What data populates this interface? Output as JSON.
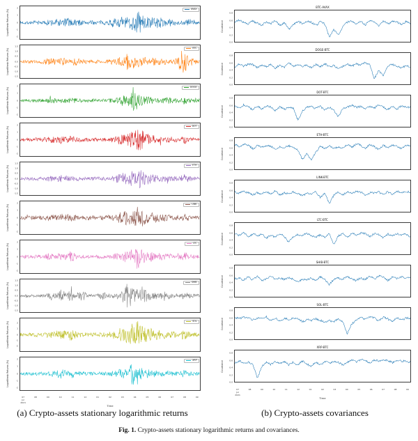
{
  "captions": {
    "left": "(a) Crypto-assets stationary logarithmic returns",
    "right": "(b) Crypto-assets covariances",
    "fig_label": "Fig. 1.",
    "fig_text": "Crypto-assets stationary logarithmic returns and covariances."
  },
  "chart_data": {
    "type": "line",
    "noise_seed": 7,
    "panels": [
      {
        "id": "returns",
        "kind": "returns",
        "ylabel": "Logarithmic Returns (%)",
        "xlabel": "Time",
        "x_ticks": [
          "07\nJul\n2021",
          "08",
          "09",
          "10",
          "11",
          "12",
          "01",
          "02",
          "03",
          "04",
          "05",
          "06",
          "07",
          "08",
          "09"
        ],
        "series": [
          {
            "label": "AVAX",
            "color": "#1f77b4",
            "ylim": [
              -2.4,
              2.4
            ],
            "yticks": [
              "2",
              "1",
              "0",
              "-1",
              "-2"
            ],
            "envelope": [
              0.1,
              0.12,
              0.11,
              0.13,
              0.12,
              0.14,
              0.25,
              0.3,
              0.22,
              0.35,
              0.2,
              0.28,
              0.18,
              0.15,
              0.14,
              0.13,
              0.15,
              0.14,
              0.3,
              0.25,
              0.45,
              0.35,
              0.6,
              0.9,
              0.5,
              0.4,
              0.35,
              0.35,
              0.3,
              0.25,
              0.2,
              0.18,
              0.16,
              0.3,
              0.2,
              0.14
            ]
          },
          {
            "label": "BTC",
            "color": "#ff7f0e",
            "ylim": [
              -1.7,
              1.7
            ],
            "yticks": [
              "1.5",
              "1.0",
              "0.5",
              "0.0",
              "-0.5",
              "-1.0",
              "-1.5"
            ],
            "envelope": [
              0.1,
              0.1,
              0.12,
              0.11,
              0.13,
              0.2,
              0.25,
              0.18,
              0.3,
              0.22,
              0.15,
              0.28,
              0.14,
              0.13,
              0.12,
              0.12,
              0.13,
              0.14,
              0.18,
              0.25,
              0.4,
              0.55,
              0.45,
              0.35,
              0.3,
              0.28,
              0.25,
              0.22,
              0.2,
              0.18,
              0.16,
              0.5,
              0.9,
              0.3,
              0.2,
              0.15
            ]
          },
          {
            "label": "DOGE",
            "color": "#2ca02c",
            "ylim": [
              -2.4,
              2.4
            ],
            "yticks": [
              "2",
              "1",
              "0",
              "-1",
              "-2"
            ],
            "envelope": [
              0.1,
              0.11,
              0.1,
              0.12,
              0.11,
              0.13,
              0.2,
              0.16,
              0.25,
              0.18,
              0.22,
              0.15,
              0.13,
              0.12,
              0.12,
              0.11,
              0.12,
              0.13,
              0.16,
              0.2,
              0.35,
              0.3,
              0.9,
              0.45,
              0.3,
              0.25,
              0.22,
              0.2,
              0.3,
              0.22,
              0.16,
              0.14,
              0.25,
              0.15,
              0.12,
              0.11
            ]
          },
          {
            "label": "DOT",
            "color": "#d62728",
            "ylim": [
              -2.4,
              2.4
            ],
            "yticks": [
              "2",
              "1",
              "0",
              "-1",
              "-2"
            ],
            "envelope": [
              0.12,
              0.13,
              0.12,
              0.14,
              0.13,
              0.15,
              0.22,
              0.18,
              0.28,
              0.2,
              0.25,
              0.16,
              0.14,
              0.13,
              0.13,
              0.12,
              0.14,
              0.15,
              0.2,
              0.3,
              0.45,
              0.4,
              0.6,
              0.9,
              0.55,
              0.4,
              0.3,
              0.25,
              0.22,
              0.2,
              0.18,
              0.16,
              0.28,
              0.16,
              0.13,
              0.12
            ]
          },
          {
            "label": "ETH",
            "color": "#9467bd",
            "ylim": [
              -1.7,
              1.7
            ],
            "yticks": [
              "1.5",
              "1.0",
              "0.5",
              "0.0",
              "-0.5",
              "-1.0",
              "-1.5"
            ],
            "envelope": [
              0.1,
              0.11,
              0.11,
              0.12,
              0.12,
              0.14,
              0.2,
              0.16,
              0.25,
              0.18,
              0.2,
              0.15,
              0.13,
              0.12,
              0.12,
              0.12,
              0.13,
              0.14,
              0.18,
              0.28,
              0.4,
              0.35,
              0.55,
              0.85,
              0.45,
              0.35,
              0.3,
              0.25,
              0.22,
              0.2,
              0.17,
              0.15,
              0.3,
              0.18,
              0.14,
              0.12
            ]
          },
          {
            "label": "LINK",
            "color": "#8c564b",
            "ylim": [
              -2.4,
              2.4
            ],
            "yticks": [
              "2",
              "1",
              "0",
              "-1",
              "-2"
            ],
            "envelope": [
              0.12,
              0.13,
              0.13,
              0.14,
              0.14,
              0.16,
              0.24,
              0.2,
              0.3,
              0.22,
              0.26,
              0.18,
              0.15,
              0.14,
              0.14,
              0.13,
              0.15,
              0.16,
              0.22,
              0.32,
              0.5,
              0.45,
              0.7,
              0.9,
              0.55,
              0.45,
              0.35,
              0.28,
              0.25,
              0.22,
              0.2,
              0.18,
              0.3,
              0.18,
              0.15,
              0.13
            ]
          },
          {
            "label": "LTC",
            "color": "#e377c2",
            "ylim": [
              -2.4,
              2.4
            ],
            "yticks": [
              "2",
              "1",
              "0",
              "-1",
              "-2"
            ],
            "envelope": [
              0.11,
              0.12,
              0.11,
              0.13,
              0.12,
              0.14,
              0.35,
              0.18,
              0.28,
              0.2,
              0.4,
              0.16,
              0.14,
              0.13,
              0.12,
              0.12,
              0.13,
              0.14,
              0.18,
              0.26,
              0.4,
              0.35,
              0.55,
              0.9,
              0.45,
              0.35,
              0.3,
              0.25,
              0.22,
              0.2,
              0.17,
              0.15,
              0.28,
              0.16,
              0.13,
              0.12
            ]
          },
          {
            "label": "SHIB",
            "color": "#7f7f7f",
            "ylim": [
              -1.7,
              1.7
            ],
            "yticks": [
              "1.5",
              "1.0",
              "0.5",
              "0.0",
              "-0.5",
              "-1.0",
              "-1.5"
            ],
            "envelope": [
              0.1,
              0.11,
              0.1,
              0.12,
              0.11,
              0.13,
              0.3,
              0.16,
              0.45,
              0.18,
              0.4,
              0.15,
              0.5,
              0.12,
              0.12,
              0.11,
              0.3,
              0.13,
              0.16,
              0.22,
              0.4,
              0.9,
              0.55,
              0.4,
              0.5,
              0.3,
              0.25,
              0.22,
              0.35,
              0.22,
              0.16,
              0.14,
              0.25,
              0.15,
              0.12,
              0.11
            ]
          },
          {
            "label": "SOL",
            "color": "#bcbd22",
            "ylim": [
              -2.9,
              2.9
            ],
            "yticks": [
              "2",
              "1",
              "0",
              "-1",
              "-2"
            ],
            "envelope": [
              0.12,
              0.13,
              0.12,
              0.14,
              0.13,
              0.15,
              0.3,
              0.2,
              0.35,
              0.22,
              0.45,
              0.18,
              0.16,
              0.14,
              0.14,
              0.13,
              0.15,
              0.16,
              0.25,
              0.35,
              0.55,
              0.5,
              0.75,
              0.95,
              0.6,
              0.5,
              0.4,
              0.32,
              0.28,
              0.25,
              0.22,
              0.2,
              0.35,
              0.2,
              0.16,
              0.14
            ]
          },
          {
            "label": "XRP",
            "color": "#17becf",
            "ylim": [
              -2.4,
              2.4
            ],
            "yticks": [
              "2",
              "1",
              "0",
              "-1",
              "-2"
            ],
            "envelope": [
              0.1,
              0.11,
              0.11,
              0.12,
              0.12,
              0.14,
              0.25,
              0.18,
              0.35,
              0.2,
              0.3,
              0.16,
              0.14,
              0.13,
              0.12,
              0.12,
              0.13,
              0.14,
              0.18,
              0.26,
              0.4,
              0.35,
              0.9,
              0.5,
              0.35,
              0.3,
              0.25,
              0.22,
              0.2,
              0.18,
              0.16,
              0.14,
              0.26,
              0.15,
              0.12,
              0.11
            ]
          }
        ]
      },
      {
        "id": "covariances",
        "kind": "covariance",
        "ylabel": "Covariance",
        "xlabel": "Time",
        "line_color": "#1f77b4",
        "ylim": [
          0,
          0.9
        ],
        "yticks": [
          "0.8",
          "0.6",
          "0.4",
          "0.2",
          "0.0"
        ],
        "x_ticks": [
          "07\nJul\n2021",
          "08",
          "09",
          "10",
          "11",
          "12",
          "01",
          "02",
          "03",
          "04",
          "05",
          "06",
          "07",
          "08",
          "09"
        ],
        "series": [
          {
            "title": "BTC-AVAX",
            "values": [
              0.55,
              0.62,
              0.58,
              0.5,
              0.6,
              0.55,
              0.45,
              0.58,
              0.52,
              0.6,
              0.48,
              0.55,
              0.35,
              0.5,
              0.58,
              0.52,
              0.6,
              0.55,
              0.48,
              0.58,
              0.5,
              0.15,
              0.35,
              0.2,
              0.45,
              0.55,
              0.6,
              0.52,
              0.58,
              0.5,
              0.62,
              0.55,
              0.48,
              0.58,
              0.52,
              0.6,
              0.55,
              0.5,
              0.58,
              0.52
            ]
          },
          {
            "title": "DOGE-BTC",
            "values": [
              0.5,
              0.58,
              0.52,
              0.6,
              0.55,
              0.48,
              0.56,
              0.5,
              0.58,
              0.45,
              0.55,
              0.5,
              0.6,
              0.52,
              0.58,
              0.5,
              0.55,
              0.48,
              0.56,
              0.52,
              0.58,
              0.5,
              0.55,
              0.45,
              0.52,
              0.58,
              0.5,
              0.6,
              0.55,
              0.62,
              0.58,
              0.15,
              0.4,
              0.25,
              0.5,
              0.58,
              0.52,
              0.45,
              0.55,
              0.5
            ]
          },
          {
            "title": "DOT-BTC",
            "values": [
              0.6,
              0.55,
              0.62,
              0.58,
              0.5,
              0.58,
              0.52,
              0.6,
              0.55,
              0.48,
              0.56,
              0.5,
              0.58,
              0.52,
              0.2,
              0.45,
              0.55,
              0.6,
              0.52,
              0.58,
              0.5,
              0.55,
              0.48,
              0.3,
              0.52,
              0.58,
              0.62,
              0.55,
              0.6,
              0.52,
              0.58,
              0.55,
              0.62,
              0.58,
              0.5,
              0.58,
              0.52,
              0.6,
              0.55,
              0.58
            ]
          },
          {
            "title": "ETH-BTC",
            "values": [
              0.7,
              0.65,
              0.72,
              0.68,
              0.6,
              0.68,
              0.62,
              0.7,
              0.65,
              0.58,
              0.66,
              0.6,
              0.68,
              0.62,
              0.55,
              0.3,
              0.45,
              0.25,
              0.5,
              0.65,
              0.6,
              0.68,
              0.58,
              0.65,
              0.6,
              0.7,
              0.65,
              0.72,
              0.68,
              0.62,
              0.7,
              0.65,
              0.58,
              0.68,
              0.62,
              0.7,
              0.65,
              0.6,
              0.68,
              0.65
            ]
          },
          {
            "title": "LINK-BTC",
            "values": [
              0.58,
              0.52,
              0.6,
              0.55,
              0.48,
              0.56,
              0.5,
              0.58,
              0.52,
              0.6,
              0.48,
              0.55,
              0.5,
              0.58,
              0.52,
              0.45,
              0.55,
              0.5,
              0.58,
              0.42,
              0.52,
              0.25,
              0.48,
              0.55,
              0.5,
              0.58,
              0.52,
              0.6,
              0.55,
              0.48,
              0.56,
              0.52,
              0.58,
              0.5,
              0.56,
              0.52,
              0.58,
              0.55,
              0.6,
              0.55
            ]
          },
          {
            "title": "LTC-BTC",
            "values": [
              0.6,
              0.55,
              0.62,
              0.5,
              0.58,
              0.52,
              0.6,
              0.45,
              0.55,
              0.5,
              0.58,
              0.52,
              0.35,
              0.5,
              0.58,
              0.52,
              0.6,
              0.55,
              0.48,
              0.56,
              0.5,
              0.58,
              0.3,
              0.52,
              0.58,
              0.5,
              0.6,
              0.55,
              0.62,
              0.58,
              0.52,
              0.6,
              0.55,
              0.48,
              0.58,
              0.52,
              0.6,
              0.55,
              0.58,
              0.52
            ]
          },
          {
            "title": "SHIB-BTC",
            "values": [
              0.5,
              0.55,
              0.48,
              0.56,
              0.5,
              0.58,
              0.45,
              0.52,
              0.58,
              0.5,
              0.55,
              0.48,
              0.56,
              0.5,
              0.42,
              0.52,
              0.46,
              0.54,
              0.48,
              0.56,
              0.5,
              0.35,
              0.48,
              0.55,
              0.5,
              0.58,
              0.52,
              0.45,
              0.55,
              0.5,
              0.58,
              0.52,
              0.6,
              0.55,
              0.48,
              0.56,
              0.52,
              0.58,
              0.52,
              0.56
            ]
          },
          {
            "title": "SOL-BTC",
            "values": [
              0.62,
              0.58,
              0.65,
              0.6,
              0.55,
              0.62,
              0.58,
              0.65,
              0.55,
              0.6,
              0.52,
              0.6,
              0.55,
              0.62,
              0.58,
              0.5,
              0.58,
              0.52,
              0.6,
              0.55,
              0.48,
              0.55,
              0.5,
              0.58,
              0.52,
              0.15,
              0.45,
              0.55,
              0.62,
              0.58,
              0.65,
              0.6,
              0.55,
              0.62,
              0.58,
              0.52,
              0.6,
              0.55,
              0.62,
              0.58
            ]
          },
          {
            "title": "XRP-BTC",
            "values": [
              0.55,
              0.6,
              0.52,
              0.58,
              0.5,
              0.1,
              0.45,
              0.55,
              0.5,
              0.58,
              0.52,
              0.6,
              0.48,
              0.56,
              0.5,
              0.58,
              0.52,
              0.45,
              0.55,
              0.5,
              0.58,
              0.52,
              0.6,
              0.55,
              0.48,
              0.56,
              0.62,
              0.58,
              0.65,
              0.6,
              0.55,
              0.62,
              0.58,
              0.65,
              0.6,
              0.55,
              0.62,
              0.58,
              0.6,
              0.56
            ]
          }
        ]
      }
    ]
  }
}
